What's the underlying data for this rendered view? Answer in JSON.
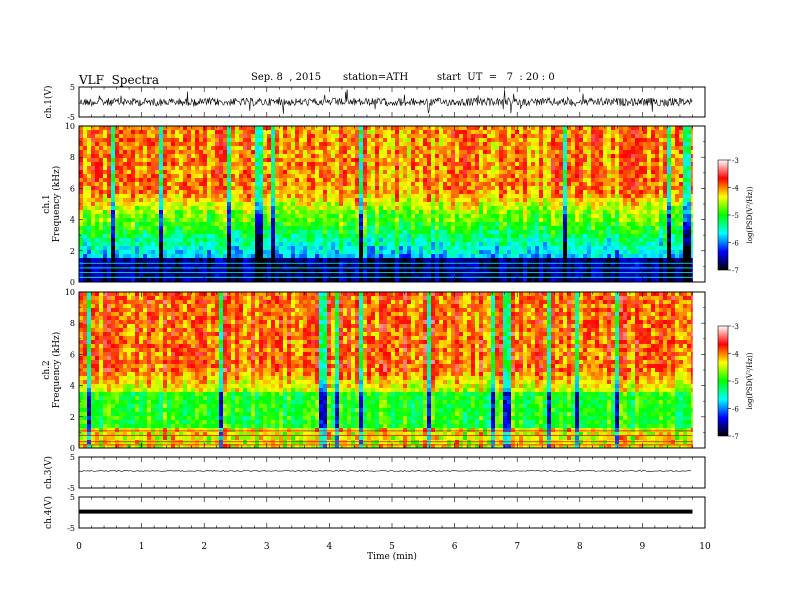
{
  "header": {
    "title": "VLF  Spectra",
    "date": "Sep. 8  , 2015",
    "station": "station=ATH",
    "start": "start  UT  =   7  : 20 : 0"
  },
  "colorbar": {
    "label": "log(PSD(V²/Hz))",
    "ticks": [
      "-3",
      "-4",
      "-5",
      "-6",
      "-7"
    ],
    "colors": [
      "#ffffff",
      "#ff0000",
      "#ffff00",
      "#00ff00",
      "#00ffff",
      "#0000ff",
      "#000000"
    ]
  },
  "chart_data": [
    {
      "type": "line",
      "panel": "ch1",
      "ylabel": "ch.1(V)",
      "yticks": [
        "5",
        "-5"
      ],
      "ylim": [
        -5,
        5
      ],
      "xlim": [
        0,
        10
      ],
      "description_values": {
        "baseline": 0,
        "noise_amplitude": 1
      }
    },
    {
      "type": "heatmap",
      "panel": "ch1-spectrogram",
      "ylabel_top": "ch.1",
      "ylabel": "Frequency  (kHz)",
      "yticks": [
        "0",
        "2",
        "4",
        "6",
        "8",
        "10"
      ],
      "ylim": [
        0,
        10
      ],
      "xlim": [
        0,
        10
      ],
      "data_end_min": 9.8,
      "zlim": [
        -7,
        -3
      ]
    },
    {
      "type": "heatmap",
      "panel": "ch2-spectrogram",
      "ylabel_top": "ch.2",
      "ylabel": "Frequency  (kHz)",
      "yticks": [
        "0",
        "2",
        "4",
        "6",
        "8",
        "10"
      ],
      "ylim": [
        0,
        10
      ],
      "xlim": [
        0,
        10
      ],
      "data_end_min": 9.8,
      "zlim": [
        -7,
        -3
      ]
    },
    {
      "type": "line",
      "panel": "ch3",
      "ylabel": "ch.3(V)",
      "yticks": [
        "5",
        "-5"
      ],
      "ylim": [
        -5,
        5
      ],
      "xlim": [
        0,
        10
      ]
    },
    {
      "type": "line",
      "panel": "ch4",
      "ylabel": "ch.4(V)",
      "yticks": [
        "5",
        "-5"
      ],
      "ylim": [
        -5,
        5
      ],
      "xlim": [
        0,
        10
      ]
    }
  ],
  "xaxis": {
    "label": "Time  (min)",
    "ticks": [
      "0",
      "1",
      "2",
      "3",
      "4",
      "5",
      "6",
      "7",
      "8",
      "9",
      "10"
    ]
  }
}
